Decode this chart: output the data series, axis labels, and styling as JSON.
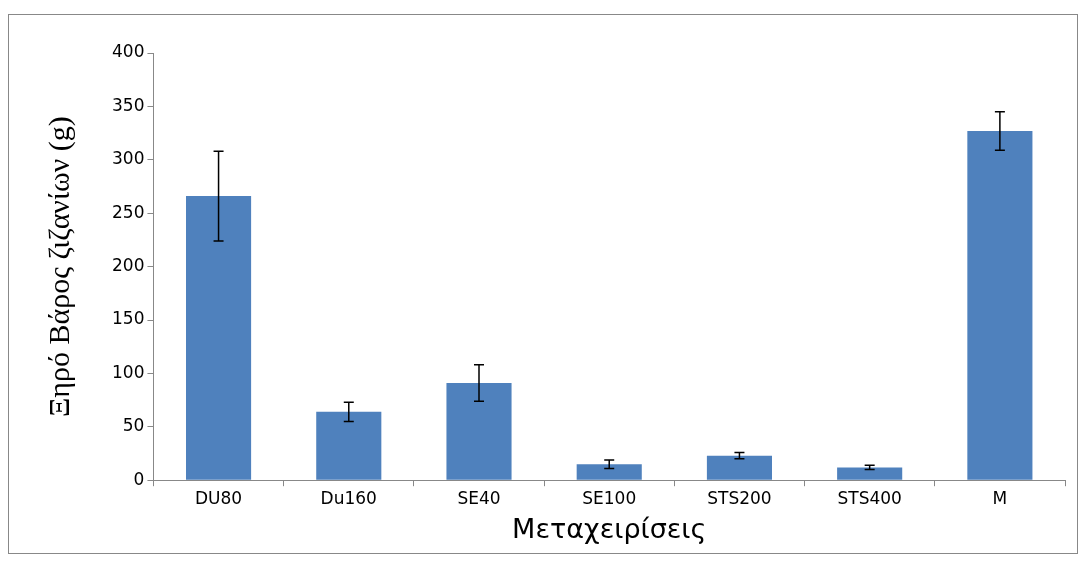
{
  "chart_data": {
    "type": "bar",
    "xlabel": "Μεταχειρίσεις",
    "ylabel": "Ξηρό Βάρος ζιζανίων (g)",
    "categories": [
      "DU80",
      "Du160",
      "SE40",
      "SE100",
      "STS200",
      "STS400",
      "M"
    ],
    "values": [
      266,
      64,
      91,
      15,
      23,
      12,
      327
    ],
    "errors": [
      42,
      9,
      17,
      4,
      3,
      2,
      18
    ],
    "color": "#4f81bd",
    "ylim": [
      0,
      400
    ],
    "yticks": [
      0,
      50,
      100,
      150,
      200,
      250,
      300,
      350,
      400
    ],
    "grid": false,
    "legend": false
  }
}
